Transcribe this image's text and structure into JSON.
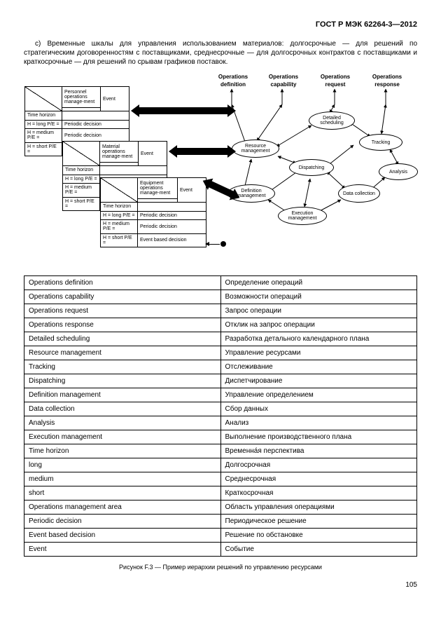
{
  "doc_id": "ГОСТ Р МЭК 62264-3—2012",
  "para_c": "c) Временные шкалы для управления использованием материалов: долгосрочные — для решений по стратегическим договоренностям с поставщиками, среднесрочные — для долгосрочных контрактов с поставщиками и краткосрочные — для решений по срывам графиков поставок.",
  "diagram": {
    "top_labels": [
      "Operations definition",
      "Operations capability",
      "Operations request",
      "Operations response"
    ],
    "tables": [
      {
        "title_top": "Personnel operations manage-ment",
        "th": "Time horizon",
        "ev": "Event",
        "rows": [
          [
            "H = long P/E =",
            "Periodic decision"
          ],
          [
            "H = medium P/E =",
            "Periodic decision"
          ],
          [
            "H = short P/E =",
            " "
          ]
        ]
      },
      {
        "title_top": "Material operations manage-ment",
        "th": "Time horizon",
        "ev": "Event",
        "rows": [
          [
            "H = long P/E =",
            " "
          ],
          [
            "H = medium P/E =",
            " "
          ],
          [
            "H = short P/E =",
            " "
          ]
        ]
      },
      {
        "title_top": "Equipment operations manage-ment",
        "th": "Time horizon",
        "ev": "Event",
        "rows": [
          [
            "H = long P/E =",
            "Periodic decision"
          ],
          [
            "H = medium P/E =",
            "Periodic decision"
          ],
          [
            "H = short P/E =",
            "Event based decision"
          ]
        ]
      }
    ],
    "nodes": {
      "resource": "Resource management",
      "detailed": "Detailed scheduling",
      "tracking": "Tracking",
      "dispatching": "Dispatching",
      "analysis": "Analysis",
      "definition": "Definition management",
      "data": "Data collection",
      "execution": "Execution management"
    }
  },
  "table_rows": [
    [
      "Operations definition",
      "Определение операций"
    ],
    [
      "Operations capability",
      "Возможности операций"
    ],
    [
      "Operations request",
      "Запрос операции"
    ],
    [
      "Operations response",
      "Отклик на запрос операции"
    ],
    [
      "Detailed scheduling",
      "Разработка детального календарного плана"
    ],
    [
      "Resource management",
      "Управление ресурсами"
    ],
    [
      "Tracking",
      "Отслеживание"
    ],
    [
      "Dispatching",
      "Диспетчирование"
    ],
    [
      "Definition management",
      "Управление определением"
    ],
    [
      "Data collection",
      "Сбор данных"
    ],
    [
      "Analysis",
      "Анализ"
    ],
    [
      "Execution management",
      "Выполнение производственного плана"
    ],
    [
      "Time horizon",
      "Временна́я перспектива"
    ],
    [
      "long",
      "Долгосрочная"
    ],
    [
      "medium",
      "Среднесрочная"
    ],
    [
      "short",
      "Краткосрочная"
    ],
    [
      "Operations management area",
      "Область управления операциями"
    ],
    [
      "Periodic decision",
      "Периодическое решение"
    ],
    [
      "Event based decision",
      "Решение по обстановке"
    ],
    [
      "Event",
      "Событие"
    ]
  ],
  "caption": "Рисунок F.3 — Пример иерархии решений по управлению ресурсами",
  "page_number": "105"
}
